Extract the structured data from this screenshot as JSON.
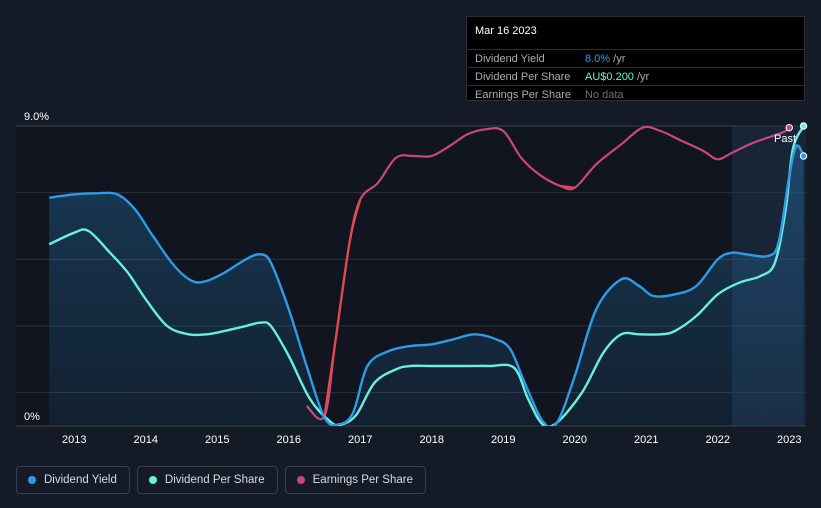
{
  "tooltip": {
    "date": "Mar 16 2023",
    "rows": [
      {
        "label": "Dividend Yield",
        "value": "8.0%",
        "unit": " /yr",
        "color": "#2d9be8"
      },
      {
        "label": "Dividend Per Share",
        "value": "AU$0.200",
        "unit": " /yr",
        "color": "#69f0dc"
      },
      {
        "label": "Earnings Per Share",
        "value": "No data",
        "unit": "",
        "color": "#6b717c"
      }
    ]
  },
  "past_label": "Past",
  "legend": [
    {
      "label": "Dividend Yield",
      "color": "#2d9be8"
    },
    {
      "label": "Dividend Per Share",
      "color": "#69f0dc"
    },
    {
      "label": "Earnings Per Share",
      "color": "#c9467f"
    }
  ],
  "chart_data": {
    "type": "line",
    "x_ticks": [
      "2013",
      "2014",
      "2015",
      "2016",
      "2017",
      "2018",
      "2019",
      "2020",
      "2021",
      "2022",
      "2023"
    ],
    "y_ticks": [
      "0%",
      "9.0%"
    ],
    "ylim": [
      0,
      9.0
    ],
    "xlim": [
      2012.5,
      2023.2
    ],
    "past_region_start": 2022.2,
    "series": [
      {
        "name": "Dividend Yield",
        "color": "#2d9be8",
        "points": [
          [
            2012.65,
            6.85
          ],
          [
            2013.0,
            6.95
          ],
          [
            2013.3,
            6.98
          ],
          [
            2013.6,
            6.95
          ],
          [
            2013.85,
            6.5
          ],
          [
            2014.1,
            5.7
          ],
          [
            2014.4,
            4.8
          ],
          [
            2014.65,
            4.35
          ],
          [
            2014.85,
            4.35
          ],
          [
            2015.1,
            4.6
          ],
          [
            2015.4,
            5.0
          ],
          [
            2015.6,
            5.15
          ],
          [
            2015.75,
            4.9
          ],
          [
            2016.0,
            3.5
          ],
          [
            2016.25,
            1.8
          ],
          [
            2016.5,
            0.25
          ],
          [
            2016.7,
            0.05
          ],
          [
            2016.9,
            0.4
          ],
          [
            2017.1,
            1.8
          ],
          [
            2017.4,
            2.25
          ],
          [
            2017.7,
            2.4
          ],
          [
            2018.0,
            2.45
          ],
          [
            2018.3,
            2.6
          ],
          [
            2018.6,
            2.75
          ],
          [
            2018.9,
            2.6
          ],
          [
            2019.1,
            2.3
          ],
          [
            2019.3,
            1.3
          ],
          [
            2019.55,
            0.15
          ],
          [
            2019.75,
            0.1
          ],
          [
            2020.0,
            1.5
          ],
          [
            2020.3,
            3.5
          ],
          [
            2020.65,
            4.4
          ],
          [
            2020.9,
            4.2
          ],
          [
            2021.1,
            3.9
          ],
          [
            2021.4,
            3.95
          ],
          [
            2021.7,
            4.2
          ],
          [
            2022.0,
            5.0
          ],
          [
            2022.2,
            5.2
          ],
          [
            2022.4,
            5.15
          ],
          [
            2022.7,
            5.1
          ],
          [
            2022.85,
            5.5
          ],
          [
            2023.0,
            7.5
          ],
          [
            2023.1,
            8.4
          ],
          [
            2023.2,
            8.1
          ]
        ]
      },
      {
        "name": "Dividend Per Share",
        "color": "#69f0dc",
        "points": [
          [
            2012.65,
            5.45
          ],
          [
            2013.0,
            5.8
          ],
          [
            2013.2,
            5.85
          ],
          [
            2013.5,
            5.2
          ],
          [
            2013.75,
            4.6
          ],
          [
            2014.0,
            3.8
          ],
          [
            2014.3,
            3.0
          ],
          [
            2014.6,
            2.75
          ],
          [
            2014.85,
            2.75
          ],
          [
            2015.1,
            2.85
          ],
          [
            2015.4,
            3.0
          ],
          [
            2015.6,
            3.1
          ],
          [
            2015.75,
            3.0
          ],
          [
            2016.0,
            2.1
          ],
          [
            2016.3,
            0.8
          ],
          [
            2016.6,
            0.1
          ],
          [
            2016.75,
            0.05
          ],
          [
            2016.95,
            0.35
          ],
          [
            2017.2,
            1.3
          ],
          [
            2017.5,
            1.7
          ],
          [
            2017.7,
            1.8
          ],
          [
            2018.0,
            1.8
          ],
          [
            2018.5,
            1.8
          ],
          [
            2018.8,
            1.8
          ],
          [
            2019.15,
            1.75
          ],
          [
            2019.35,
            0.8
          ],
          [
            2019.55,
            0.05
          ],
          [
            2019.75,
            0.1
          ],
          [
            2020.1,
            1.0
          ],
          [
            2020.4,
            2.2
          ],
          [
            2020.65,
            2.75
          ],
          [
            2020.9,
            2.75
          ],
          [
            2021.2,
            2.75
          ],
          [
            2021.4,
            2.85
          ],
          [
            2021.7,
            3.3
          ],
          [
            2022.0,
            3.95
          ],
          [
            2022.3,
            4.3
          ],
          [
            2022.6,
            4.5
          ],
          [
            2022.8,
            4.9
          ],
          [
            2022.95,
            6.5
          ],
          [
            2023.05,
            8.3
          ],
          [
            2023.2,
            9.0
          ]
        ]
      },
      {
        "name": "Earnings Per Share",
        "color": "#c9467f",
        "negative_color": "#e44a4a",
        "points": [
          [
            2016.25,
            0.6
          ],
          [
            2016.5,
            0.3
          ],
          [
            2016.65,
            2.5
          ],
          [
            2016.85,
            5.5
          ],
          [
            2017.0,
            6.8
          ],
          [
            2017.25,
            7.3
          ],
          [
            2017.5,
            8.05
          ],
          [
            2017.75,
            8.1
          ],
          [
            2018.0,
            8.1
          ],
          [
            2018.25,
            8.4
          ],
          [
            2018.5,
            8.75
          ],
          [
            2018.75,
            8.9
          ],
          [
            2019.0,
            8.85
          ],
          [
            2019.25,
            8.05
          ],
          [
            2019.5,
            7.55
          ],
          [
            2019.8,
            7.2
          ],
          [
            2020.0,
            7.15
          ],
          [
            2020.3,
            7.85
          ],
          [
            2020.65,
            8.45
          ],
          [
            2020.95,
            8.95
          ],
          [
            2021.2,
            8.85
          ],
          [
            2021.5,
            8.55
          ],
          [
            2021.8,
            8.25
          ],
          [
            2022.0,
            8.0
          ],
          [
            2022.2,
            8.2
          ],
          [
            2022.5,
            8.5
          ],
          [
            2022.9,
            8.8
          ],
          [
            2023.0,
            8.95
          ]
        ]
      }
    ]
  }
}
